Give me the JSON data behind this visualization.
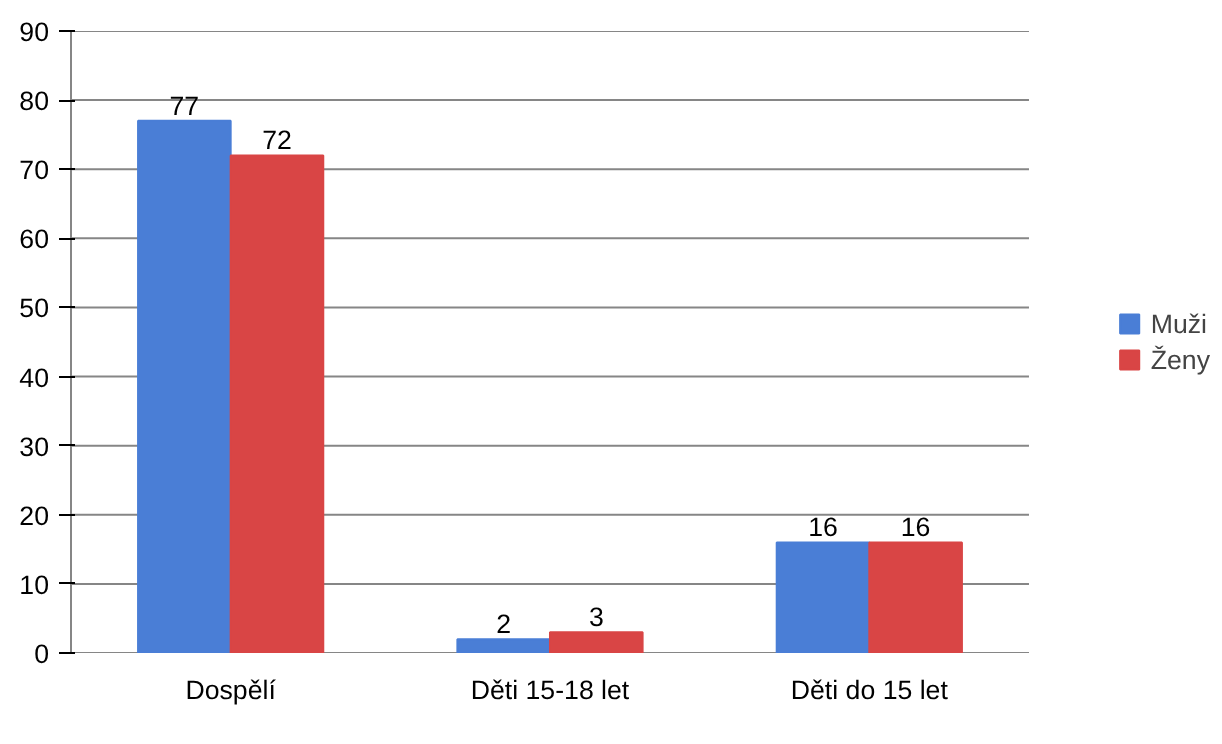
{
  "chart_data": {
    "type": "bar",
    "categories": [
      "Dospělí",
      "Děti 15-18 let",
      "Děti do 15 let"
    ],
    "series": [
      {
        "name": "Muži",
        "color": "#4a7ed6",
        "values": [
          77,
          2,
          16
        ]
      },
      {
        "name": "Ženy",
        "color": "#d94545",
        "values": [
          72,
          3,
          16
        ]
      }
    ],
    "ylim": [
      0,
      90
    ],
    "yticks": [
      0,
      10,
      20,
      30,
      40,
      50,
      60,
      70,
      80,
      90
    ],
    "grid": "y",
    "legend": "right",
    "data_labels": true
  }
}
